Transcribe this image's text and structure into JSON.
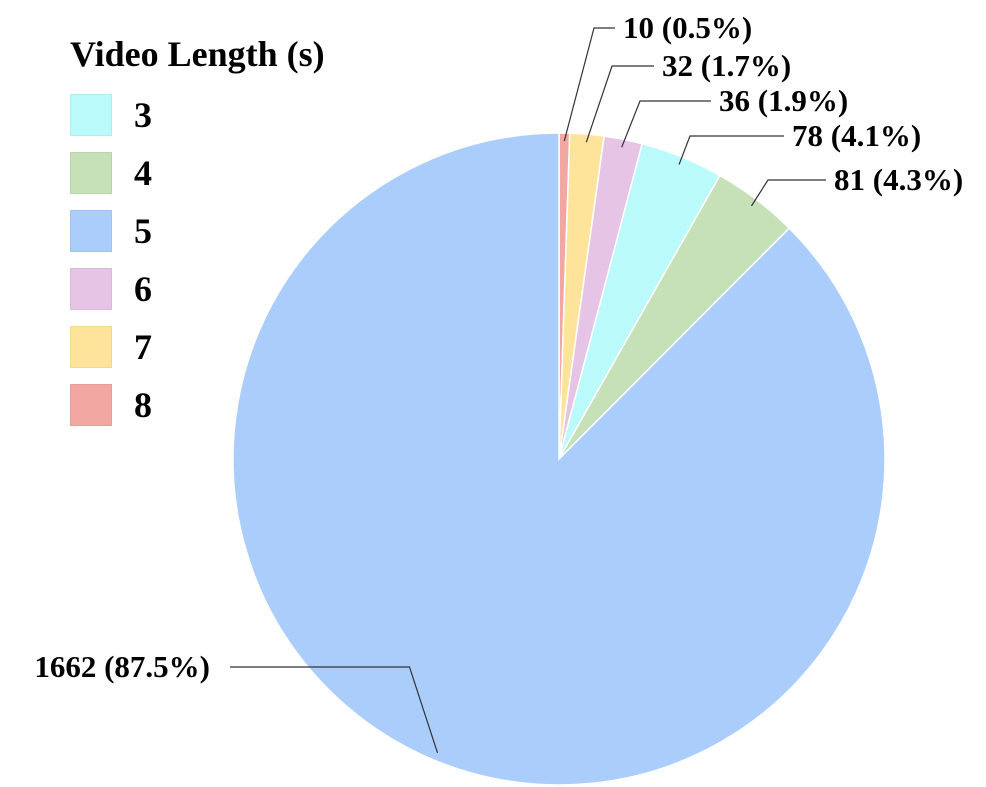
{
  "chart_data": {
    "type": "pie",
    "legend_title": "Video Length (s)",
    "legend_position": "top-left",
    "slices": [
      {
        "category": "8",
        "value": 10,
        "percent": "0.5%",
        "label": "10 (0.5%)",
        "color": "#f2a7a2"
      },
      {
        "category": "7",
        "value": 32,
        "percent": "1.7%",
        "label": "32 (1.7%)",
        "color": "#fde49a"
      },
      {
        "category": "6",
        "value": 36,
        "percent": "1.9%",
        "label": "36 (1.9%)",
        "color": "#e6c4e6"
      },
      {
        "category": "3",
        "value": 78,
        "percent": "4.1%",
        "label": "78 (4.1%)",
        "color": "#bafafa"
      },
      {
        "category": "4",
        "value": 81,
        "percent": "4.3%",
        "label": "81 (4.3%)",
        "color": "#c6e0b8"
      },
      {
        "category": "5",
        "value": 1662,
        "percent": "87.5%",
        "label": "1662 (87.5%)",
        "color": "#abcdfc"
      }
    ],
    "legend_order": [
      "3",
      "4",
      "5",
      "6",
      "7",
      "8"
    ]
  }
}
